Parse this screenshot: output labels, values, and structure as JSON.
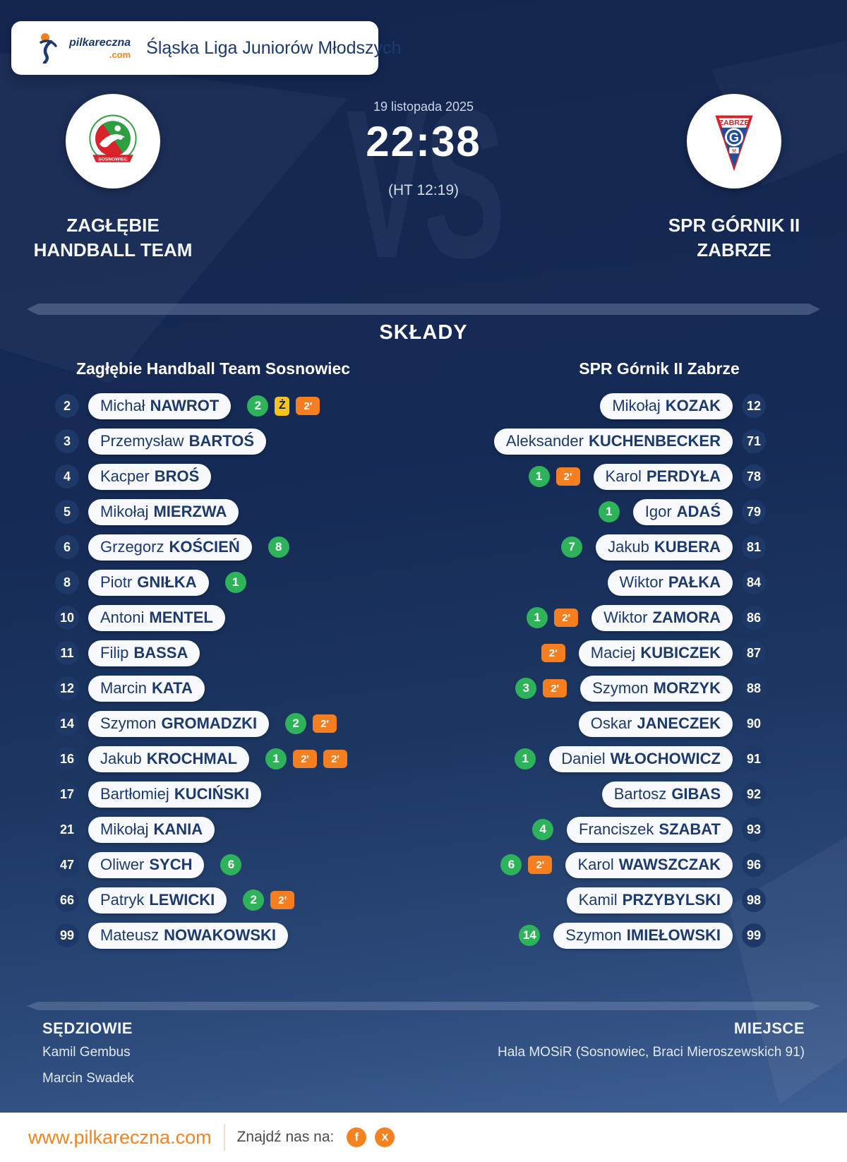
{
  "colors": {
    "accent_orange": "#F58220",
    "goal_green": "#2EB35A",
    "yellow_card_yellow": "#F6C21D",
    "penalty_orange": "#F47E20",
    "navy_text": "#1C3A6F",
    "background_top": "#14264F",
    "background_bottom": "#45659C"
  },
  "league_card": {
    "logo_name": "pilkareczna",
    "logo_suffix": ".com",
    "title": "Śląska Liga Juniorów Młodszych"
  },
  "match": {
    "date": "19 listopada 2025",
    "score": "22:38",
    "halftime": "(HT 12:19)",
    "vs_watermark": "VS",
    "home_team": {
      "name_line1": "ZAGŁĘBIE",
      "name_line2": "HANDBALL TEAM",
      "logo_banner": "SOSNOWIEC"
    },
    "away_team": {
      "name_line1": "SPR GÓRNIK II",
      "name_line2": "ZABRZE",
      "logo_top_text": "ZABRZE",
      "logo_letter": "G"
    }
  },
  "lineups": {
    "section_title": "SKŁADY",
    "home_header": "Zagłębie Handball Team Sosnowiec",
    "away_header": "SPR Górnik II Zabrze",
    "home_players": [
      {
        "number": "2",
        "first": "Michał",
        "last": "NAWROT",
        "badges": [
          {
            "type": "goals",
            "value": "2"
          },
          {
            "type": "yellow-card",
            "value": "Ż"
          },
          {
            "type": "two-minutes",
            "value": "2'"
          }
        ]
      },
      {
        "number": "3",
        "first": "Przemysław",
        "last": "BARTOŚ",
        "badges": []
      },
      {
        "number": "4",
        "first": "Kacper",
        "last": "BROŚ",
        "badges": []
      },
      {
        "number": "5",
        "first": "Mikołaj",
        "last": "MIERZWA",
        "badges": []
      },
      {
        "number": "6",
        "first": "Grzegorz",
        "last": "KOŚCIEŃ",
        "badges": [
          {
            "type": "goals",
            "value": "8"
          }
        ]
      },
      {
        "number": "8",
        "first": "Piotr",
        "last": "GNIŁKA",
        "badges": [
          {
            "type": "goals",
            "value": "1"
          }
        ]
      },
      {
        "number": "10",
        "first": "Antoni",
        "last": "MENTEL",
        "badges": []
      },
      {
        "number": "11",
        "first": "Filip",
        "last": "BASSA",
        "badges": []
      },
      {
        "number": "12",
        "first": "Marcin",
        "last": "KATA",
        "badges": []
      },
      {
        "number": "14",
        "first": "Szymon",
        "last": "GROMADZKI",
        "badges": [
          {
            "type": "goals",
            "value": "2"
          },
          {
            "type": "two-minutes",
            "value": "2'"
          }
        ]
      },
      {
        "number": "16",
        "first": "Jakub",
        "last": "KROCHMAL",
        "badges": [
          {
            "type": "goals",
            "value": "1"
          },
          {
            "type": "two-minutes",
            "value": "2'"
          },
          {
            "type": "two-minutes",
            "value": "2'"
          }
        ]
      },
      {
        "number": "17",
        "first": "Bartłomiej",
        "last": "KUCIŃSKI",
        "badges": []
      },
      {
        "number": "21",
        "first": "Mikołaj",
        "last": "KANIA",
        "badges": []
      },
      {
        "number": "47",
        "first": "Oliwer",
        "last": "SYCH",
        "badges": [
          {
            "type": "goals",
            "value": "6"
          }
        ]
      },
      {
        "number": "66",
        "first": "Patryk",
        "last": "LEWICKI",
        "badges": [
          {
            "type": "goals",
            "value": "2"
          },
          {
            "type": "two-minutes",
            "value": "2'"
          }
        ]
      },
      {
        "number": "99",
        "first": "Mateusz",
        "last": "NOWAKOWSKI",
        "badges": []
      }
    ],
    "away_players": [
      {
        "number": "12",
        "first": "Mikołaj",
        "last": "KOZAK",
        "badges": []
      },
      {
        "number": "71",
        "first": "Aleksander",
        "last": "KUCHENBECKER",
        "badges": []
      },
      {
        "number": "78",
        "first": "Karol",
        "last": "PERDYŁA",
        "badges": [
          {
            "type": "goals",
            "value": "1"
          },
          {
            "type": "two-minutes",
            "value": "2'"
          }
        ]
      },
      {
        "number": "79",
        "first": "Igor",
        "last": "ADAŚ",
        "badges": [
          {
            "type": "goals",
            "value": "1"
          }
        ]
      },
      {
        "number": "81",
        "first": "Jakub",
        "last": "KUBERA",
        "badges": [
          {
            "type": "goals",
            "value": "7"
          }
        ]
      },
      {
        "number": "84",
        "first": "Wiktor",
        "last": "PAŁKA",
        "badges": []
      },
      {
        "number": "86",
        "first": "Wiktor",
        "last": "ZAMORA",
        "badges": [
          {
            "type": "goals",
            "value": "1"
          },
          {
            "type": "two-minutes",
            "value": "2'"
          }
        ]
      },
      {
        "number": "87",
        "first": "Maciej",
        "last": "KUBICZEK",
        "badges": [
          {
            "type": "two-minutes",
            "value": "2'"
          }
        ]
      },
      {
        "number": "88",
        "first": "Szymon",
        "last": "MORZYK",
        "badges": [
          {
            "type": "goals",
            "value": "3"
          },
          {
            "type": "two-minutes",
            "value": "2'"
          }
        ]
      },
      {
        "number": "90",
        "first": "Oskar",
        "last": "JANECZEK",
        "badges": []
      },
      {
        "number": "91",
        "first": "Daniel",
        "last": "WŁOCHOWICZ",
        "badges": [
          {
            "type": "goals",
            "value": "1"
          }
        ]
      },
      {
        "number": "92",
        "first": "Bartosz",
        "last": "GIBAS",
        "badges": []
      },
      {
        "number": "93",
        "first": "Franciszek",
        "last": "SZABAT",
        "badges": [
          {
            "type": "goals",
            "value": "4"
          }
        ]
      },
      {
        "number": "96",
        "first": "Karol",
        "last": "WAWSZCZAK",
        "badges": [
          {
            "type": "goals",
            "value": "6"
          },
          {
            "type": "two-minutes",
            "value": "2'"
          }
        ]
      },
      {
        "number": "98",
        "first": "Kamil",
        "last": "PRZYBYLSKI",
        "badges": []
      },
      {
        "number": "99",
        "first": "Szymon",
        "last": "IMIEŁOWSKI",
        "badges": [
          {
            "type": "goals",
            "value": "14"
          }
        ]
      }
    ]
  },
  "details": {
    "referees_label": "SĘDZIOWIE",
    "referees": [
      "Kamil Gembus",
      "Marcin Swadek"
    ],
    "venue_label": "MIEJSCE",
    "venue": "Hala MOSiR (Sosnowiec, Braci Mieroszewskich 91)"
  },
  "footer": {
    "website": "www.pilkareczna.com",
    "find_us_label": "Znajdź nas na:",
    "facebook_glyph": "f",
    "x_glyph": "X"
  }
}
